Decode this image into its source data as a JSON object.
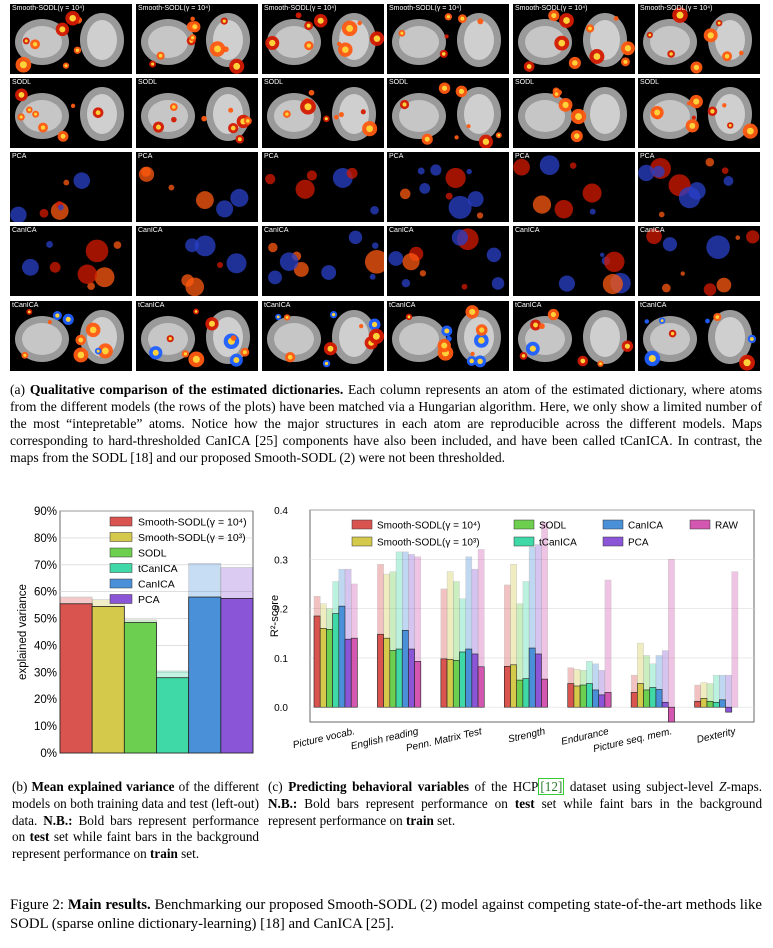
{
  "panel_a": {
    "row_labels": [
      "Smooth-SODL(γ = 10⁴)",
      "SODL",
      "PCA",
      "CanICA",
      "tCanICA"
    ],
    "caption": {
      "tag": "(a)",
      "bold": "Qualitative comparison of the estimated dictionaries.",
      "text": "Each column represents an atom of the estimated dictionary, where atoms from the different models (the rows of the plots) have been matched via a Hungarian algorithm. Here, we only show a limited number of the most “intepretable” atoms. Notice how the major structures in each atom are reproducible across the different models. Maps corresponding to hard-thresholded CanICA [25] components have also been included, and have been called tCanICA. In contrast, the maps from the SODL [18] and our proposed Smooth-SODL (2) were not been thresholded."
    }
  },
  "panel_b": {
    "caption": {
      "tag": "(b)",
      "bold": "Mean explained variance",
      "text": "of the different models on both training data and test (left-out) data.",
      "nb": "N.B.:",
      "t1": "Bold bars represent performance on",
      "test": "test",
      "t2": "set while faint bars in the background represent performance on",
      "train": "train",
      "t3": "set."
    }
  },
  "panel_c": {
    "caption": {
      "tag": "(c)",
      "bold": "Predicting behavioral variables",
      "t1": "of the HCP",
      "ref": "[12]",
      "t2": "dataset using subject-level",
      "z": "Z",
      "t3": "-maps.",
      "nb": "N.B.:",
      "t4": "Bold bars represent performance on",
      "test": "test",
      "t5": "set while faint bars in the background represent performance on",
      "train": "train",
      "t6": "set."
    }
  },
  "figure_caption": {
    "label": "Figure 2:",
    "bold": "Main results.",
    "text": "Benchmarking our proposed Smooth-SODL (2) model against competing state-of-the-art methods like SODL (sparse online dictionary-learning) [18] and CanICA [25]."
  },
  "chart_data": [
    {
      "type": "bar",
      "ylabel": "explained variance",
      "ylim": [
        0,
        90
      ],
      "yticks": [
        "0%",
        "10%",
        "20%",
        "30%",
        "40%",
        "50%",
        "60%",
        "70%",
        "80%",
        "90%"
      ],
      "legend_placement": "top-right",
      "series": [
        {
          "name": "Smooth-SODL(γ = 10⁴)",
          "color": "#d9534f",
          "test": 55.5,
          "train": 58.0
        },
        {
          "name": "Smooth-SODL(γ = 10³)",
          "color": "#d4c94a",
          "test": 54.5,
          "train": 57.0
        },
        {
          "name": "SODL",
          "color": "#6ccf4f",
          "test": 48.5,
          "train": 49.5
        },
        {
          "name": "tCanICA",
          "color": "#3ed9a6",
          "test": 28.0,
          "train": 30.5
        },
        {
          "name": "CanICA",
          "color": "#4a90d9",
          "test": 58.0,
          "train": 70.5
        },
        {
          "name": "PCA",
          "color": "#8a55d6",
          "test": 57.5,
          "train": 69.0
        }
      ]
    },
    {
      "type": "bar",
      "ylabel": "R²-score",
      "ylim": [
        -0.03,
        0.4
      ],
      "yticks": [
        "0.0",
        "0.1",
        "0.2",
        "0.3",
        "0.4"
      ],
      "categories": [
        "Picture vocab.",
        "English reading",
        "Penn. Matrix Test",
        "Strength",
        "Endurance",
        "Picture seq. mem.",
        "Dexterity"
      ],
      "legend_placement": "top",
      "series": [
        {
          "name": "Smooth-SODL(γ = 10⁴)",
          "color": "#d9534f",
          "test": [
            0.185,
            0.148,
            0.098,
            0.083,
            0.048,
            0.03,
            0.012
          ],
          "train": [
            0.225,
            0.29,
            0.24,
            0.248,
            0.08,
            0.065,
            0.045
          ]
        },
        {
          "name": "Smooth-SODL(γ = 10³)",
          "color": "#d4c94a",
          "test": [
            0.16,
            0.14,
            0.097,
            0.086,
            0.043,
            0.048,
            0.018
          ],
          "train": [
            0.21,
            0.27,
            0.275,
            0.29,
            0.077,
            0.13,
            0.05
          ]
        },
        {
          "name": "SODL",
          "color": "#6ccf4f",
          "test": [
            0.158,
            0.115,
            0.095,
            0.055,
            0.045,
            0.035,
            0.012
          ],
          "train": [
            0.2,
            0.275,
            0.255,
            0.21,
            0.075,
            0.105,
            0.048
          ]
        },
        {
          "name": "tCanICA",
          "color": "#3ed9a6",
          "test": [
            0.19,
            0.118,
            0.112,
            0.058,
            0.048,
            0.04,
            0.01
          ],
          "train": [
            0.255,
            0.315,
            0.22,
            0.255,
            0.093,
            0.088,
            0.065
          ]
        },
        {
          "name": "CanICA",
          "color": "#4a90d9",
          "test": [
            0.205,
            0.156,
            0.118,
            0.12,
            0.035,
            0.036,
            0.015
          ],
          "train": [
            0.28,
            0.315,
            0.305,
            0.325,
            0.088,
            0.105,
            0.065
          ]
        },
        {
          "name": "PCA",
          "color": "#8a55d6",
          "test": [
            0.138,
            0.118,
            0.108,
            0.108,
            0.025,
            0.01,
            -0.01
          ],
          "train": [
            0.28,
            0.31,
            0.28,
            0.33,
            0.075,
            0.115,
            0.065
          ]
        },
        {
          "name": "RAW",
          "color": "#d357b0",
          "test": [
            0.14,
            0.093,
            0.082,
            0.057,
            0.03,
            -0.03,
            0.0
          ],
          "train": [
            0.25,
            0.305,
            0.32,
            0.375,
            0.258,
            0.3,
            0.275
          ]
        }
      ]
    }
  ]
}
